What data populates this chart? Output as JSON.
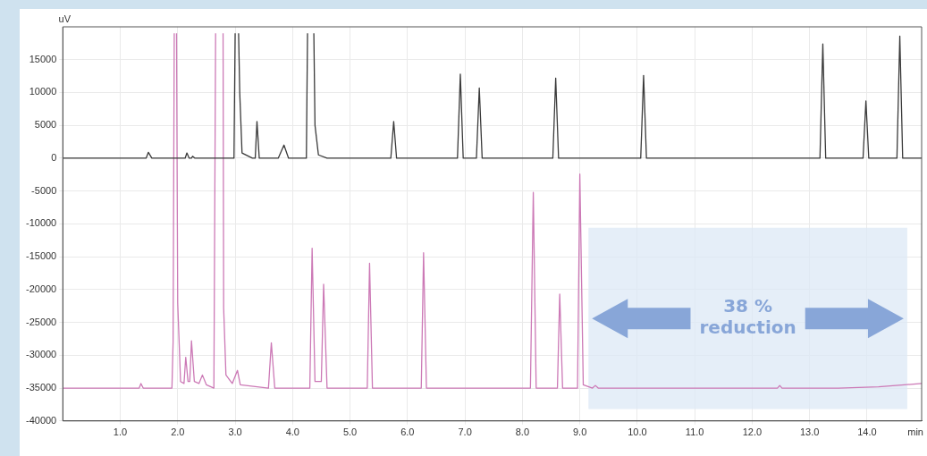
{
  "chart_data": {
    "type": "line",
    "xlabel": "min",
    "ylabel": "uV",
    "xlim": [
      0,
      14.95
    ],
    "ylim": [
      -40000,
      20000
    ],
    "xticks": [
      {
        "value": 1,
        "label": "1.0"
      },
      {
        "value": 2,
        "label": "2.0"
      },
      {
        "value": 3,
        "label": "3.0"
      },
      {
        "value": 4,
        "label": "4.0"
      },
      {
        "value": 5,
        "label": "5.0"
      },
      {
        "value": 6,
        "label": "6.0"
      },
      {
        "value": 7,
        "label": "7.0"
      },
      {
        "value": 8,
        "label": "8.0"
      },
      {
        "value": 9,
        "label": "9.0"
      },
      {
        "value": 10,
        "label": "10.0"
      },
      {
        "value": 11,
        "label": "11.0"
      },
      {
        "value": 12,
        "label": "12.0"
      },
      {
        "value": 13,
        "label": "13.0"
      },
      {
        "value": 14,
        "label": "14.0"
      }
    ],
    "yticks": [
      -40000,
      -35000,
      -30000,
      -25000,
      -20000,
      -15000,
      -10000,
      -5000,
      0,
      5000,
      10000,
      15000
    ],
    "grid": true,
    "legend": false,
    "marker": "none",
    "line_style": "solid",
    "series": [
      {
        "color": "#3a3a3a",
        "x": [
          0,
          1.45,
          1.49,
          1.55,
          2.13,
          2.16,
          2.2,
          2.24,
          2.26,
          2.3,
          2.98,
          3.0,
          3.03,
          3.06,
          3.08,
          3.12,
          3.3,
          3.35,
          3.38,
          3.42,
          3.75,
          3.85,
          3.93,
          4.24,
          4.26,
          4.315,
          4.37,
          4.39,
          4.45,
          4.6,
          5.71,
          5.76,
          5.81,
          6.87,
          6.92,
          6.97,
          7.2,
          7.25,
          7.3,
          8.53,
          8.58,
          8.63,
          10.06,
          10.11,
          10.16,
          13.18,
          13.23,
          13.28,
          13.93,
          13.98,
          14.03,
          14.52,
          14.57,
          14.62,
          14.95
        ],
        "values": [
          0,
          0,
          900,
          0,
          0,
          800,
          0,
          0,
          300,
          0,
          0,
          19000,
          null,
          19000,
          10000,
          800,
          0,
          0,
          5600,
          0,
          0,
          2000,
          0,
          0,
          19000,
          null,
          19000,
          5000,
          500,
          0,
          0,
          5600,
          0,
          0,
          12800,
          0,
          0,
          10700,
          0,
          0,
          12200,
          0,
          0,
          12600,
          0,
          0,
          17400,
          0,
          0,
          8700,
          0,
          0,
          18600,
          0,
          0
        ]
      },
      {
        "color": "#cc79b6",
        "x": [
          0,
          1.33,
          1.36,
          1.4,
          1.9,
          1.92,
          1.94,
          1.96,
          1.98,
          2.0,
          2.05,
          2.11,
          2.14,
          2.18,
          2.21,
          2.24,
          2.29,
          2.37,
          2.43,
          2.5,
          2.63,
          2.66,
          2.725,
          2.79,
          2.8,
          2.84,
          2.95,
          3.04,
          3.09,
          3.58,
          3.63,
          3.69,
          4.3,
          4.34,
          4.39,
          4.5,
          4.54,
          4.6,
          5.3,
          5.34,
          5.39,
          6.24,
          6.28,
          6.33,
          8.14,
          8.19,
          8.24,
          8.61,
          8.65,
          8.7,
          8.96,
          9.0,
          9.06,
          9.22,
          9.27,
          9.32,
          12.44,
          12.48,
          12.52,
          13.5,
          14.2,
          14.95
        ],
        "values": [
          -35000,
          -35000,
          -34300,
          -35000,
          -35000,
          -28000,
          19000,
          null,
          19000,
          -22000,
          -34000,
          -34300,
          -30300,
          -34000,
          -34000,
          -27800,
          -34000,
          -34300,
          -33000,
          -34500,
          -35000,
          19000,
          null,
          19000,
          -22800,
          -33000,
          -34300,
          -32300,
          -34500,
          -35000,
          -28100,
          -35000,
          -35000,
          -13700,
          -34000,
          -34000,
          -19200,
          -35000,
          -35000,
          -16000,
          -35000,
          -35000,
          -14400,
          -35000,
          -35000,
          -5200,
          -35000,
          -35000,
          -20700,
          -35000,
          -35000,
          -2400,
          -34500,
          -35000,
          -34600,
          -35000,
          -35000,
          -34600,
          -35000,
          -35000,
          -34800,
          -34300
        ]
      }
    ],
    "bands": [
      {
        "axis": "x",
        "from": 9.15,
        "to": 14.7,
        "label": "38 % reduction",
        "color": "#dce8f5"
      }
    ]
  }
}
